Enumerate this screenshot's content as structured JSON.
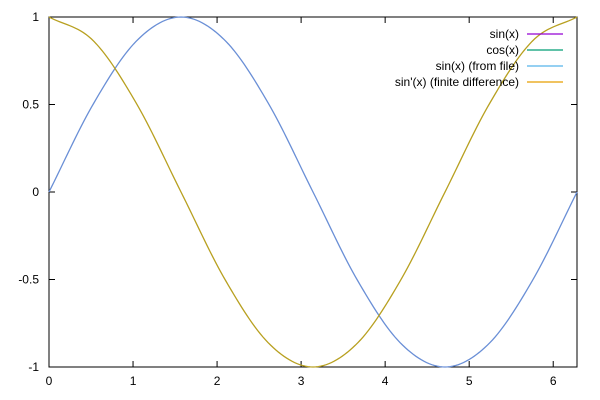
{
  "chart_data": {
    "type": "line",
    "title": "",
    "xlabel": "",
    "ylabel": "",
    "xlim": [
      0,
      6.283
    ],
    "ylim": [
      -1,
      1
    ],
    "x_ticks": [
      0,
      1,
      2,
      3,
      4,
      5,
      6
    ],
    "x_tick_labels": [
      "0",
      "1",
      "2",
      "3",
      "4",
      "5",
      "6"
    ],
    "y_ticks": [
      1,
      0.5,
      0,
      -0.5,
      -1
    ],
    "y_tick_labels": [
      "1",
      "0.5",
      "0",
      "-0.5",
      "-1"
    ],
    "grid": false,
    "legend_position": "top-right",
    "x": [
      0,
      0.5236,
      1.0472,
      1.5708,
      2.0944,
      2.618,
      3.1416,
      3.6652,
      4.1888,
      4.7124,
      5.236,
      5.7596,
      6.2832
    ],
    "series": [
      {
        "name": "sin(x)",
        "color": "#9400d3",
        "visible_in_plot": false,
        "values": [
          0,
          0.5,
          0.866,
          1,
          0.866,
          0.5,
          0,
          -0.5,
          -0.866,
          -1,
          -0.866,
          -0.5,
          0
        ]
      },
      {
        "name": "cos(x)",
        "color": "#009e73",
        "visible_in_plot": false,
        "values": [
          1,
          0.866,
          0.5,
          0,
          -0.5,
          -0.866,
          -1,
          -0.866,
          -0.5,
          0,
          0.5,
          0.866,
          1
        ]
      },
      {
        "name": "sin(x) (from file)",
        "color": "#56b4e9",
        "visible_in_plot": true,
        "values": [
          0,
          0.5,
          0.866,
          1,
          0.866,
          0.5,
          0,
          -0.5,
          -0.866,
          -1,
          -0.866,
          -0.5,
          0
        ]
      },
      {
        "name": "sin'(x) (finite difference)",
        "color": "#e69f00",
        "visible_in_plot": true,
        "values": [
          1,
          0.866,
          0.5,
          0,
          -0.5,
          -0.866,
          -1,
          -0.866,
          -0.5,
          0,
          0.5,
          0.866,
          1
        ]
      }
    ]
  },
  "render": {
    "line_colors": {
      "sin(x) (from file)": "#6a8fd6",
      "sin'(x) (finite difference)": "#b8a020"
    }
  }
}
